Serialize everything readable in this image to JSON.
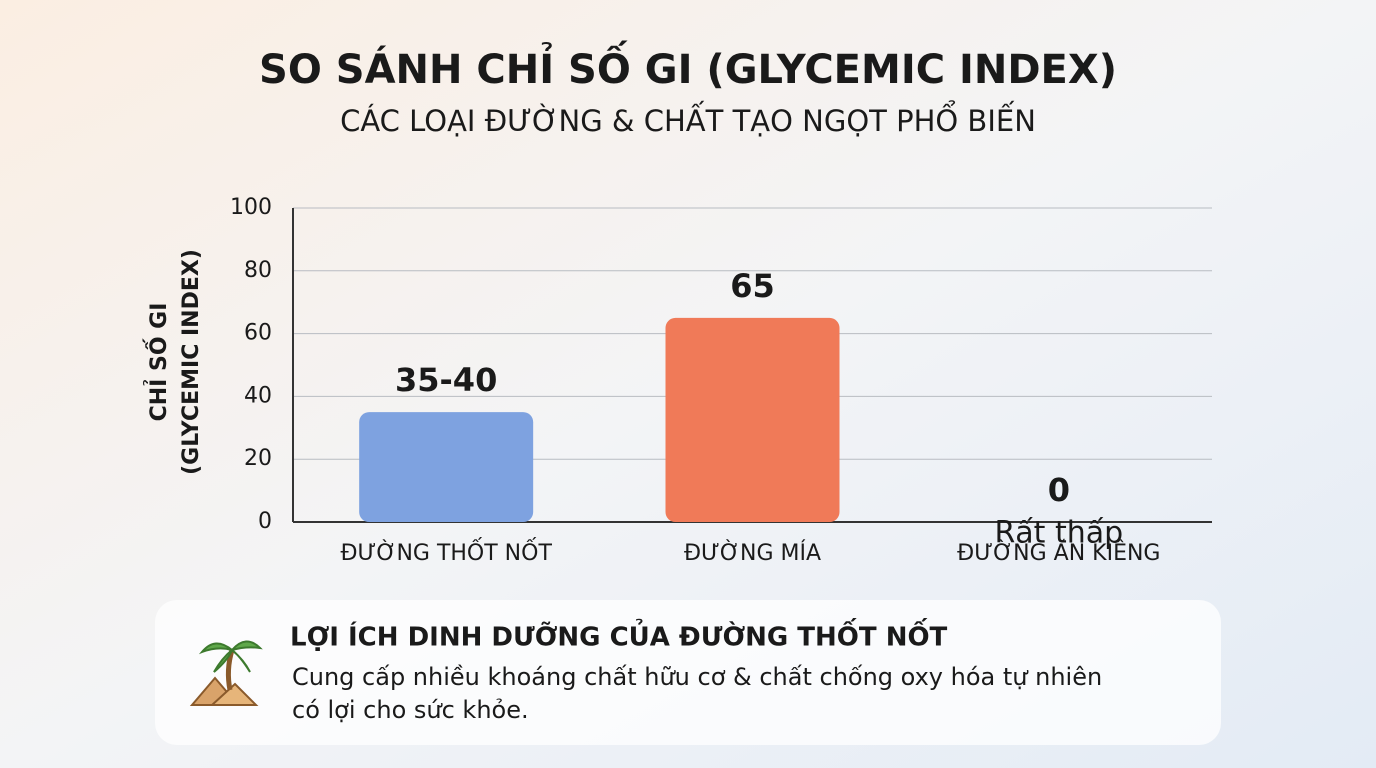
{
  "chart_data": {
    "type": "bar",
    "title": "SO SÁNH CHỈ SỐ GI (GLYCEMIC INDEX)",
    "subtitle": "CÁC LOẠI ĐƯỜNG & CHẤT TẠO NGỌT PHỔ BIẾN",
    "y_label": [
      "CHỈ SỐ GI",
      "(GLYCEMIC INDEX)"
    ],
    "categories": [
      "ĐƯỜNG THỐT NỐT",
      "ĐƯỜNG MÍA",
      "ĐƯỜNG ĂN KIÊNG"
    ],
    "values": [
      35,
      65,
      0
    ],
    "value_labels": [
      "35-40",
      "65",
      "0"
    ],
    "annotation": "Rất thấp",
    "colors": [
      "#7ea2e0",
      "#f07a58",
      "#d8dce2"
    ],
    "ylim": [
      0,
      100
    ],
    "yticks": [
      0,
      20,
      40,
      60,
      80,
      100
    ],
    "grid": true
  },
  "card": {
    "title": "LỢI ÍCH DINH DƯỠNG CỦA ĐƯỜNG THỐT NỐT",
    "text_lines": [
      "Cung cấp nhiều khoáng chất hữu cơ & chất chống oxy hóa tự nhiên",
      "có lợi cho sức khỏe."
    ]
  }
}
